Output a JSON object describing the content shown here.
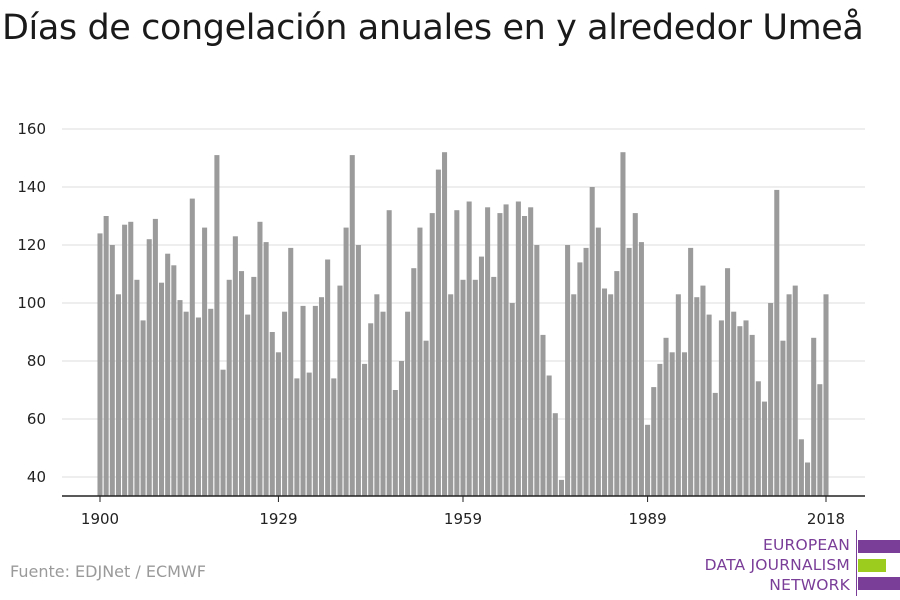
{
  "title": "Días de congelación anuales en y alrededor Umeå",
  "source": "Fuente: EDJNet / ECMWF",
  "logo": {
    "lines": [
      "EUROPEAN",
      "DATA JOURNALISM",
      "NETWORK"
    ],
    "colors": {
      "text": "#7a3d98",
      "bar_purple": "#7a3d98",
      "bar_green": "#9ccc1e"
    }
  },
  "colors": {
    "bar": "#9b9b9b",
    "grid": "#dcdcdc",
    "axis": "#222222"
  },
  "chart_data": {
    "type": "bar",
    "title": "Días de congelación anuales en y alrededor Umeå",
    "xlabel": "",
    "ylabel": "",
    "ylim": [
      33,
      165
    ],
    "yticks": [
      40,
      60,
      80,
      100,
      120,
      140,
      160
    ],
    "xticks": [
      1900,
      1929,
      1959,
      1989,
      2018
    ],
    "grid": true,
    "x_start": 1900,
    "x_end": 2018,
    "values": [
      124,
      130,
      120,
      103,
      127,
      128,
      108,
      94,
      122,
      129,
      107,
      117,
      113,
      101,
      97,
      136,
      95,
      126,
      98,
      151,
      77,
      108,
      123,
      111,
      96,
      109,
      128,
      121,
      90,
      83,
      97,
      119,
      74,
      99,
      76,
      99,
      102,
      115,
      74,
      106,
      126,
      151,
      120,
      79,
      93,
      103,
      97,
      132,
      70,
      80,
      97,
      112,
      126,
      87,
      131,
      146,
      152,
      103,
      132,
      108,
      135,
      108,
      116,
      133,
      109,
      131,
      134,
      100,
      135,
      130,
      133,
      120,
      89,
      75,
      62,
      39,
      120,
      103,
      114,
      119,
      140,
      126,
      105,
      103,
      111,
      152,
      119,
      131,
      121,
      58,
      71,
      79,
      88,
      83,
      103,
      83,
      119,
      102,
      106,
      96,
      69,
      94,
      112,
      97,
      92,
      94,
      89,
      73,
      66,
      100,
      139,
      87,
      103,
      106,
      53,
      45,
      88,
      72,
      103
    ]
  }
}
